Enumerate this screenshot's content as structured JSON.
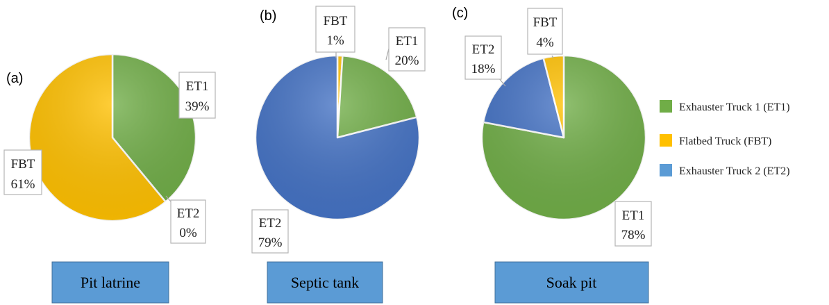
{
  "chart_data": [
    {
      "type": "pie",
      "panel": "(a)",
      "title": "Pit latrine",
      "slices": [
        {
          "key": "ET1",
          "label": "ET1",
          "value": 39,
          "value_label": "39%",
          "color": "#70ad47"
        },
        {
          "key": "ET2",
          "label": "ET2",
          "value": 0,
          "value_label": "0%",
          "color": "#4472c4"
        },
        {
          "key": "FBT",
          "label": "FBT",
          "value": 61,
          "value_label": "61%",
          "color": "#ffc000"
        }
      ]
    },
    {
      "type": "pie",
      "panel": "(b)",
      "title": "Septic tank",
      "slices": [
        {
          "key": "ET1",
          "label": "ET1",
          "value": 20,
          "value_label": "20%",
          "color": "#70ad47"
        },
        {
          "key": "ET2",
          "label": "ET2",
          "value": 79,
          "value_label": "79%",
          "color": "#4472c4"
        },
        {
          "key": "FBT",
          "label": "FBT",
          "value": 1,
          "value_label": "1%",
          "color": "#ffc000"
        }
      ]
    },
    {
      "type": "pie",
      "panel": "(c)",
      "title": "Soak pit",
      "slices": [
        {
          "key": "ET1",
          "label": "ET1",
          "value": 78,
          "value_label": "78%",
          "color": "#70ad47"
        },
        {
          "key": "ET2",
          "label": "ET2",
          "value": 18,
          "value_label": "18%",
          "color": "#4472c4"
        },
        {
          "key": "FBT",
          "label": "FBT",
          "value": 4,
          "value_label": "4%",
          "color": "#ffc000"
        }
      ]
    }
  ],
  "legend": {
    "position": "right",
    "items": [
      {
        "key": "ET1",
        "label": "Exhauster Truck 1 (ET1)",
        "color": "#70ad47"
      },
      {
        "key": "FBT",
        "label": "Flatbed Truck (FBT)",
        "color": "#ffc000"
      },
      {
        "key": "ET2",
        "label": "Exhauster Truck 2 (ET2)",
        "color": "#5b9bd5"
      }
    ]
  },
  "colors": {
    "category_box": "#5b9bd5",
    "background": "#ffffff"
  }
}
